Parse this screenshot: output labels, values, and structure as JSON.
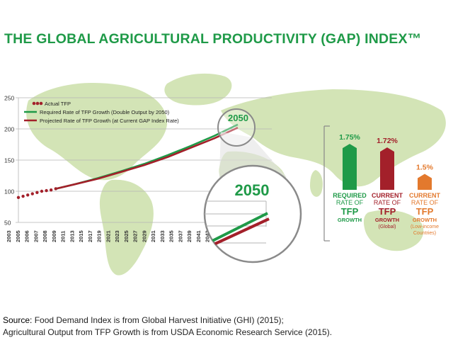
{
  "title": "THE GLOBAL AGRICULTURAL PRODUCTIVITY (GAP) INDEX™",
  "chart_data": {
    "type": "line",
    "x_ticks": [
      2003,
      2005,
      2006,
      2007,
      2008,
      2009,
      2011,
      2013,
      2015,
      2017,
      2019,
      2021,
      2023,
      2025,
      2027,
      2029,
      2031,
      2033,
      2035,
      2037,
      2039,
      2041,
      2043,
      2045,
      2047
    ],
    "y_ticks": [
      50,
      100,
      150,
      200,
      250
    ],
    "ylim": [
      50,
      250
    ],
    "xlim": [
      2003,
      2050
    ],
    "grid": "horizontal",
    "legend_position": "top-left",
    "series": [
      {
        "name": "Actual TFP",
        "style": "dots",
        "color": "#a3202a",
        "x": [
          2003,
          2004,
          2005,
          2006,
          2007,
          2008,
          2009,
          2010,
          2011
        ],
        "y": [
          90,
          92,
          94,
          96,
          98,
          100,
          101,
          102,
          104
        ]
      },
      {
        "name": "Required Rate of TFP Growth (Double Output by 2050)",
        "style": "line",
        "color": "#1f9a48",
        "x": [
          2011,
          2015,
          2020,
          2025,
          2030,
          2035,
          2040,
          2045,
          2050
        ],
        "y": [
          104,
          111,
          121,
          132,
          144,
          158,
          173,
          189,
          207
        ]
      },
      {
        "name": "Projected Rate of TFP Growth (at Current GAP Index Rate)",
        "style": "line",
        "color": "#a3202a",
        "x": [
          2011,
          2015,
          2020,
          2025,
          2030,
          2035,
          2040,
          2045,
          2050
        ],
        "y": [
          104,
          111,
          120,
          131,
          142,
          155,
          170,
          185,
          202
        ]
      }
    ],
    "callout_label": "2050",
    "zoom_label": "2050",
    "rates": [
      {
        "value": 1.75,
        "value_label": "1.75%",
        "label_top": "REQUIRED",
        "label_mid": "RATE OF",
        "label_big": "TFP",
        "label_bottom": "GROWTH",
        "sub": "",
        "color": "#1f9a48"
      },
      {
        "value": 1.72,
        "value_label": "1.72%",
        "label_top": "CURRENT",
        "label_mid": "RATE OF",
        "label_big": "TFP",
        "label_bottom": "GROWTH",
        "sub": "(Global)",
        "color": "#a3202a"
      },
      {
        "value": 1.5,
        "value_label": "1.5%",
        "label_top": "CURRENT",
        "label_mid": "RATE OF",
        "label_big": "TFP",
        "label_bottom": "GROWTH",
        "sub": "(Low-income",
        "sub2": "Countries)",
        "color": "#e3792d"
      }
    ]
  },
  "source": {
    "prefix": "Source:",
    "line1": " Food Demand Index is from Global Harvest Initiative (GHI) (2015);",
    "line2": "Agricultural Output from TFP Growth is from USDA Economic Research Service (2015)."
  }
}
